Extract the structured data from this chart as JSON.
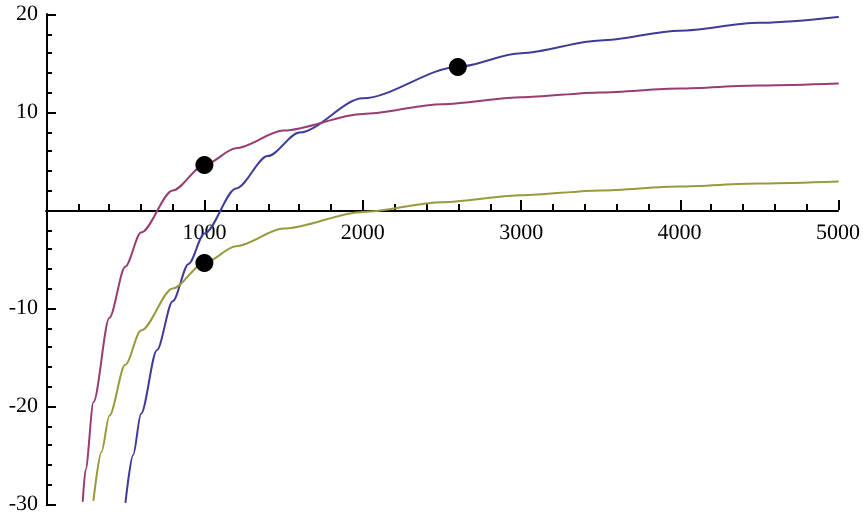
{
  "chart_data": {
    "type": "line",
    "xlim": [
      0,
      5000
    ],
    "ylim": [
      -30,
      20
    ],
    "xticks": [
      1000,
      2000,
      3000,
      4000,
      5000
    ],
    "yticks": [
      -30,
      -20,
      -10,
      10,
      20
    ],
    "grid": false,
    "line_style": "solid",
    "series": [
      {
        "color": "#3d3d99",
        "marker": "none",
        "x": [
          502,
          550,
          600,
          700,
          800,
          900,
          1000,
          1200,
          1400,
          1600,
          2000,
          2600,
          3000,
          3500,
          4000,
          4500,
          5000
        ],
        "values": [
          -29.8,
          -25.0,
          -20.8,
          -14.3,
          -9.3,
          -5.5,
          -2.4,
          2.2,
          5.5,
          7.9,
          11.4,
          14.6,
          16.0,
          17.3,
          18.3,
          19.1,
          19.7
        ]
      },
      {
        "color": "#993d71",
        "marker": "none",
        "x": [
          232,
          250,
          300,
          400,
          500,
          600,
          800,
          1000,
          1200,
          1500,
          2000,
          2500,
          3000,
          3500,
          4000,
          4500,
          5000
        ],
        "values": [
          -29.7,
          -26.5,
          -19.6,
          -11.0,
          -5.8,
          -2.3,
          2.0,
          4.6,
          6.3,
          8.1,
          9.8,
          10.8,
          11.5,
          12.0,
          12.4,
          12.7,
          12.9
        ]
      },
      {
        "color": "#99993d",
        "marker": "none",
        "x": [
          300,
          350,
          400,
          500,
          600,
          800,
          1000,
          1200,
          1500,
          2000,
          2500,
          3000,
          3500,
          4000,
          4500,
          5000
        ],
        "values": [
          -29.6,
          -24.7,
          -21.0,
          -15.8,
          -12.3,
          -8.0,
          -5.4,
          -3.7,
          -1.9,
          -0.2,
          0.8,
          1.5,
          2.0,
          2.4,
          2.7,
          2.9
        ]
      },
      {
        "type": "scatter",
        "color": "#000000",
        "marker": "circle",
        "x": [
          1000,
          2600,
          1000
        ],
        "values": [
          4.6,
          14.6,
          -5.4
        ]
      }
    ]
  }
}
